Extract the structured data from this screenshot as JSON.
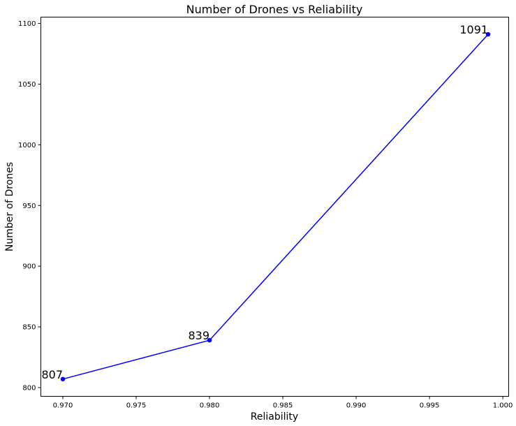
{
  "chart_data": {
    "type": "line",
    "title": "Number of Drones vs Reliability",
    "xlabel": "Reliability",
    "ylabel": "Number of Drones",
    "x": [
      0.97,
      0.98,
      0.999
    ],
    "series": [
      {
        "values": [
          807,
          839,
          1091
        ]
      }
    ],
    "data_labels": [
      "807",
      "839",
      "1091"
    ],
    "xlim": [
      0.9685,
      1.0004
    ],
    "ylim": [
      792.8,
      1105.2
    ],
    "xticks": [
      "0.970",
      "0.975",
      "0.980",
      "0.985",
      "0.990",
      "0.995",
      "1.000"
    ],
    "yticks": [
      "800",
      "850",
      "900",
      "950",
      "1000",
      "1050",
      "1100"
    ],
    "grid": false,
    "line_color": "#0000ff",
    "marker_color": "#0000ff"
  }
}
